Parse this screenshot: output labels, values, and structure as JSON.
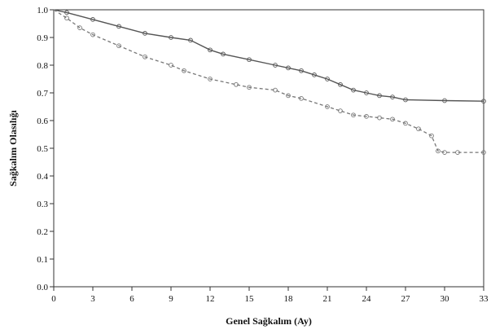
{
  "chart_data": {
    "type": "line",
    "title": "",
    "xlabel": "Genel Sağkalım (Ay)",
    "ylabel": "Sağkalım Olasılığı",
    "xlim": [
      0,
      33
    ],
    "ylim": [
      0,
      1
    ],
    "x_ticks": [
      0,
      3,
      6,
      9,
      12,
      15,
      18,
      21,
      24,
      27,
      30,
      33
    ],
    "x_tick_labels": [
      "0",
      "3",
      "6",
      "9",
      "12",
      "15",
      "18",
      "21",
      "24",
      "27",
      "30",
      "33"
    ],
    "y_ticks": [
      0.0,
      0.1,
      0.2,
      0.3,
      0.4,
      0.5,
      0.6,
      0.7,
      0.8,
      0.9,
      1.0
    ],
    "y_tick_labels": [
      "0.0",
      "0.1",
      "0.2",
      "0.3",
      "0.4",
      "0.5",
      "0.6",
      "0.7",
      "0.8",
      "0.9",
      "1.0"
    ],
    "grid": false,
    "series": [
      {
        "style": "solid",
        "color": "#555555",
        "x": [
          0,
          1,
          3,
          5,
          7,
          9,
          10.5,
          12,
          13,
          15,
          17,
          18,
          19,
          20,
          21,
          22,
          23,
          24,
          25,
          26,
          27,
          30,
          33
        ],
        "y": [
          1.0,
          0.99,
          0.965,
          0.94,
          0.915,
          0.9,
          0.89,
          0.855,
          0.84,
          0.82,
          0.8,
          0.79,
          0.78,
          0.765,
          0.75,
          0.73,
          0.71,
          0.7,
          0.69,
          0.685,
          0.675,
          0.672,
          0.67
        ]
      },
      {
        "style": "dashed",
        "color": "#777777",
        "x": [
          0,
          1,
          2,
          3,
          5,
          7,
          9,
          10,
          12,
          14,
          15,
          17,
          18,
          19,
          21,
          22,
          23,
          24,
          25,
          26,
          27,
          28,
          29,
          29.5,
          30,
          31,
          33
        ],
        "y": [
          1.0,
          0.97,
          0.935,
          0.91,
          0.87,
          0.83,
          0.8,
          0.78,
          0.75,
          0.73,
          0.72,
          0.71,
          0.69,
          0.68,
          0.65,
          0.635,
          0.62,
          0.615,
          0.61,
          0.605,
          0.59,
          0.57,
          0.545,
          0.49,
          0.485,
          0.485,
          0.485
        ]
      }
    ]
  }
}
